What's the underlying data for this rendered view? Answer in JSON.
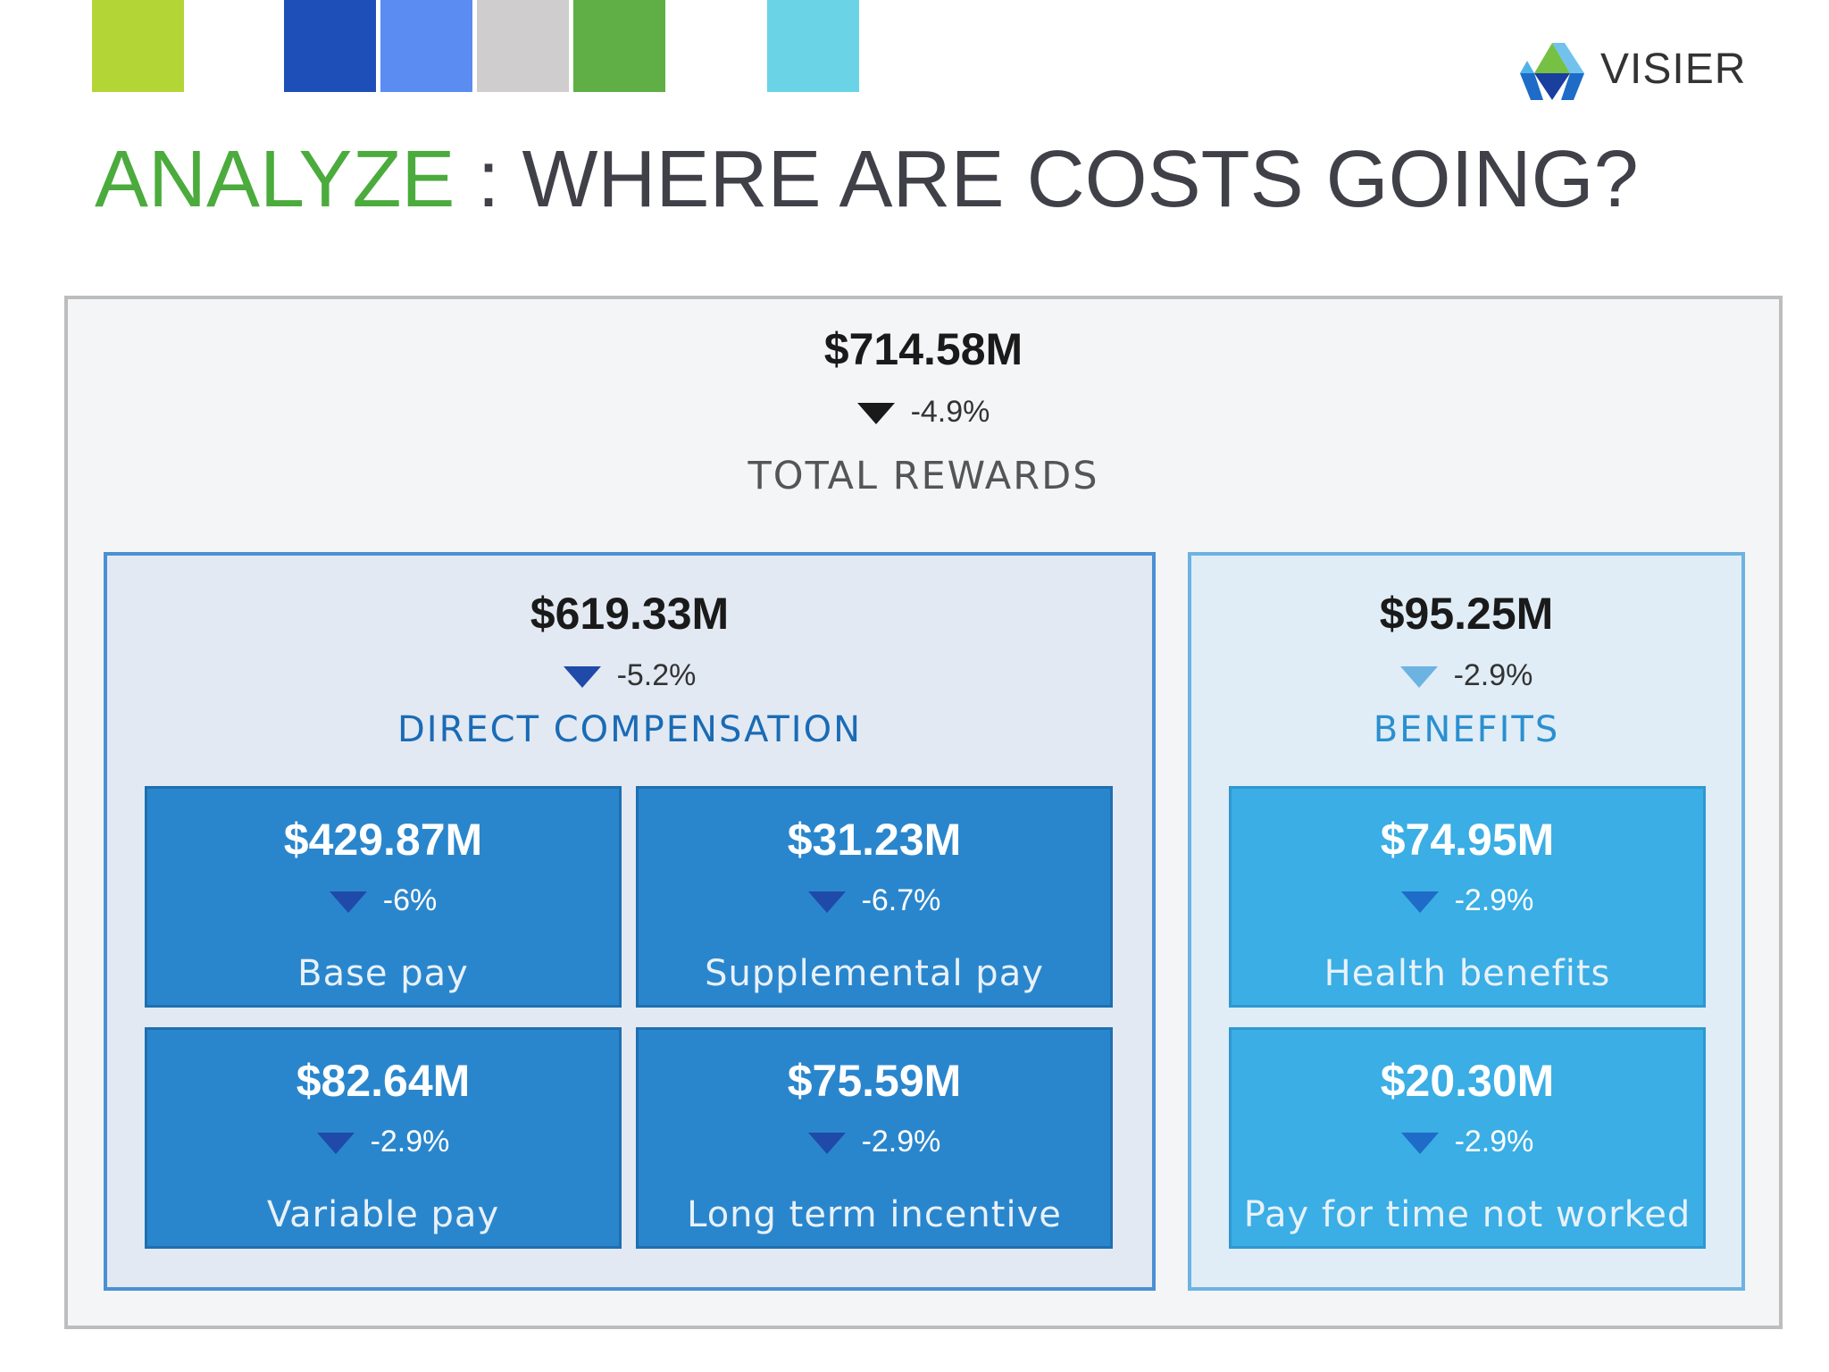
{
  "header": {
    "swatches": [
      "#b3d535",
      "#1e4fb8",
      "#5b8cf2",
      "#cfcdcd",
      "#5fae46",
      "#6ad4e6"
    ],
    "logo": {
      "text": "VISIER",
      "icon": "visier-logo-icon",
      "colors": [
        "#76c043",
        "#1e6cc8",
        "#1a3f9f",
        "#4fb3e8"
      ]
    }
  },
  "title": {
    "highlight": "ANALYZE",
    "rest": " : WHERE ARE COSTS GOING?",
    "highlight_color": "#4bab3d"
  },
  "total": {
    "value": "$714.58M",
    "delta": "-4.9%",
    "label": "TOTAL REWARDS",
    "arrow_color": "#1a1a1a"
  },
  "groups": [
    {
      "value": "$619.33M",
      "delta": "-5.2%",
      "label": "DIRECT COMPENSATION",
      "arrow_color": "#1f4aaa",
      "tiles": [
        {
          "value": "$429.87M",
          "delta": "-6%",
          "label": "Base pay"
        },
        {
          "value": "$31.23M",
          "delta": "-6.7%",
          "label": "Supplemental pay"
        },
        {
          "value": "$82.64M",
          "delta": "-2.9%",
          "label": "Variable pay"
        },
        {
          "value": "$75.59M",
          "delta": "-2.9%",
          "label": "Long term incentive"
        }
      ],
      "tile_arrow_color": "#1f4aaa"
    },
    {
      "value": "$95.25M",
      "delta": "-2.9%",
      "label": "BENEFITS",
      "arrow_color": "#6cb3e2",
      "tiles": [
        {
          "value": "$74.95M",
          "delta": "-2.9%",
          "label": "Health benefits"
        },
        {
          "value": "$20.30M",
          "delta": "-2.9%",
          "label": "Pay for time not worked"
        }
      ],
      "tile_arrow_color": "#1e6cc8"
    }
  ]
}
